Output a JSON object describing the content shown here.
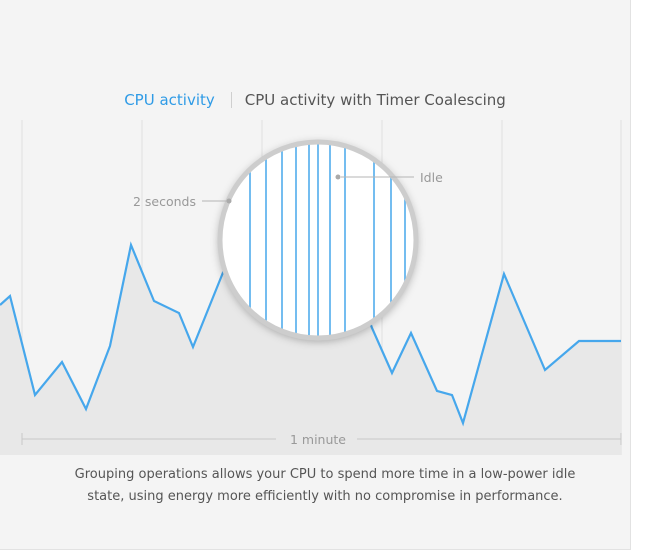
{
  "tabs": [
    {
      "label": "CPU activity",
      "active": true
    },
    {
      "label": "CPU activity with Timer Coalescing",
      "active": false
    }
  ],
  "labels": {
    "two_seconds": "2 seconds",
    "idle": "Idle",
    "one_minute": "1 minute"
  },
  "caption": {
    "line1": "Grouping operations allows your CPU to spend more time in a low-power idle",
    "line2": "state, using energy more efficiently with no compromise in performance."
  },
  "colors": {
    "activity_line": "#46a7ec",
    "activity_fill": "#e8e8e8",
    "grid": "#e0e0e0",
    "text_muted": "#999999",
    "accent": "#2f9be6"
  },
  "icons": [
    "magnifier-lens"
  ]
}
